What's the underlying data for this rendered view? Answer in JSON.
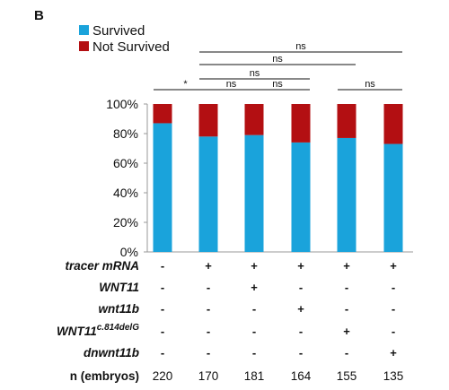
{
  "panel_label": "B",
  "colors": {
    "survived": "#1aa3db",
    "not_survived": "#b30f12"
  },
  "chart_data": {
    "type": "bar",
    "stacked": true,
    "categories": [
      "1",
      "2",
      "3",
      "4",
      "5",
      "6"
    ],
    "series": [
      {
        "name": "Survived",
        "values": [
          87,
          78,
          79,
          74,
          77,
          73
        ]
      },
      {
        "name": "Not Survived",
        "values": [
          13,
          22,
          21,
          26,
          23,
          27
        ]
      }
    ],
    "ylim": [
      0,
      100
    ],
    "yticks": [
      "0%",
      "20%",
      "40%",
      "60%",
      "80%",
      "100%"
    ],
    "legend": "top-left",
    "grid": false
  },
  "significance": [
    {
      "from": 1,
      "to": 2,
      "label": "*"
    },
    {
      "from": 2,
      "to": 3,
      "label": "ns"
    },
    {
      "from": 3,
      "to": 4,
      "label": "ns"
    },
    {
      "from": 5,
      "to": 6,
      "label": "ns"
    },
    {
      "from": 2,
      "to": 4,
      "label": "ns"
    },
    {
      "from": 2,
      "to": 5,
      "label": "ns"
    },
    {
      "from": 2,
      "to": 6,
      "label": "ns"
    }
  ],
  "conditions": {
    "rows": [
      {
        "label": "tracer mRNA",
        "values": [
          "-",
          "+",
          "+",
          "+",
          "+",
          "+"
        ]
      },
      {
        "label": "WNT11",
        "values": [
          "-",
          "-",
          "+",
          "-",
          "-",
          "-"
        ]
      },
      {
        "label": "wnt11b",
        "values": [
          "-",
          "-",
          "-",
          "+",
          "-",
          "-"
        ]
      },
      {
        "label": "WNT11",
        "superscript": "c.814delG",
        "values": [
          "-",
          "-",
          "-",
          "-",
          "+",
          "-"
        ]
      },
      {
        "label": "dnwnt11b",
        "values": [
          "-",
          "-",
          "-",
          "-",
          "-",
          "+"
        ]
      }
    ],
    "n_label": "n (embryos)",
    "n_values": [
      "220",
      "170",
      "181",
      "164",
      "155",
      "135"
    ]
  }
}
